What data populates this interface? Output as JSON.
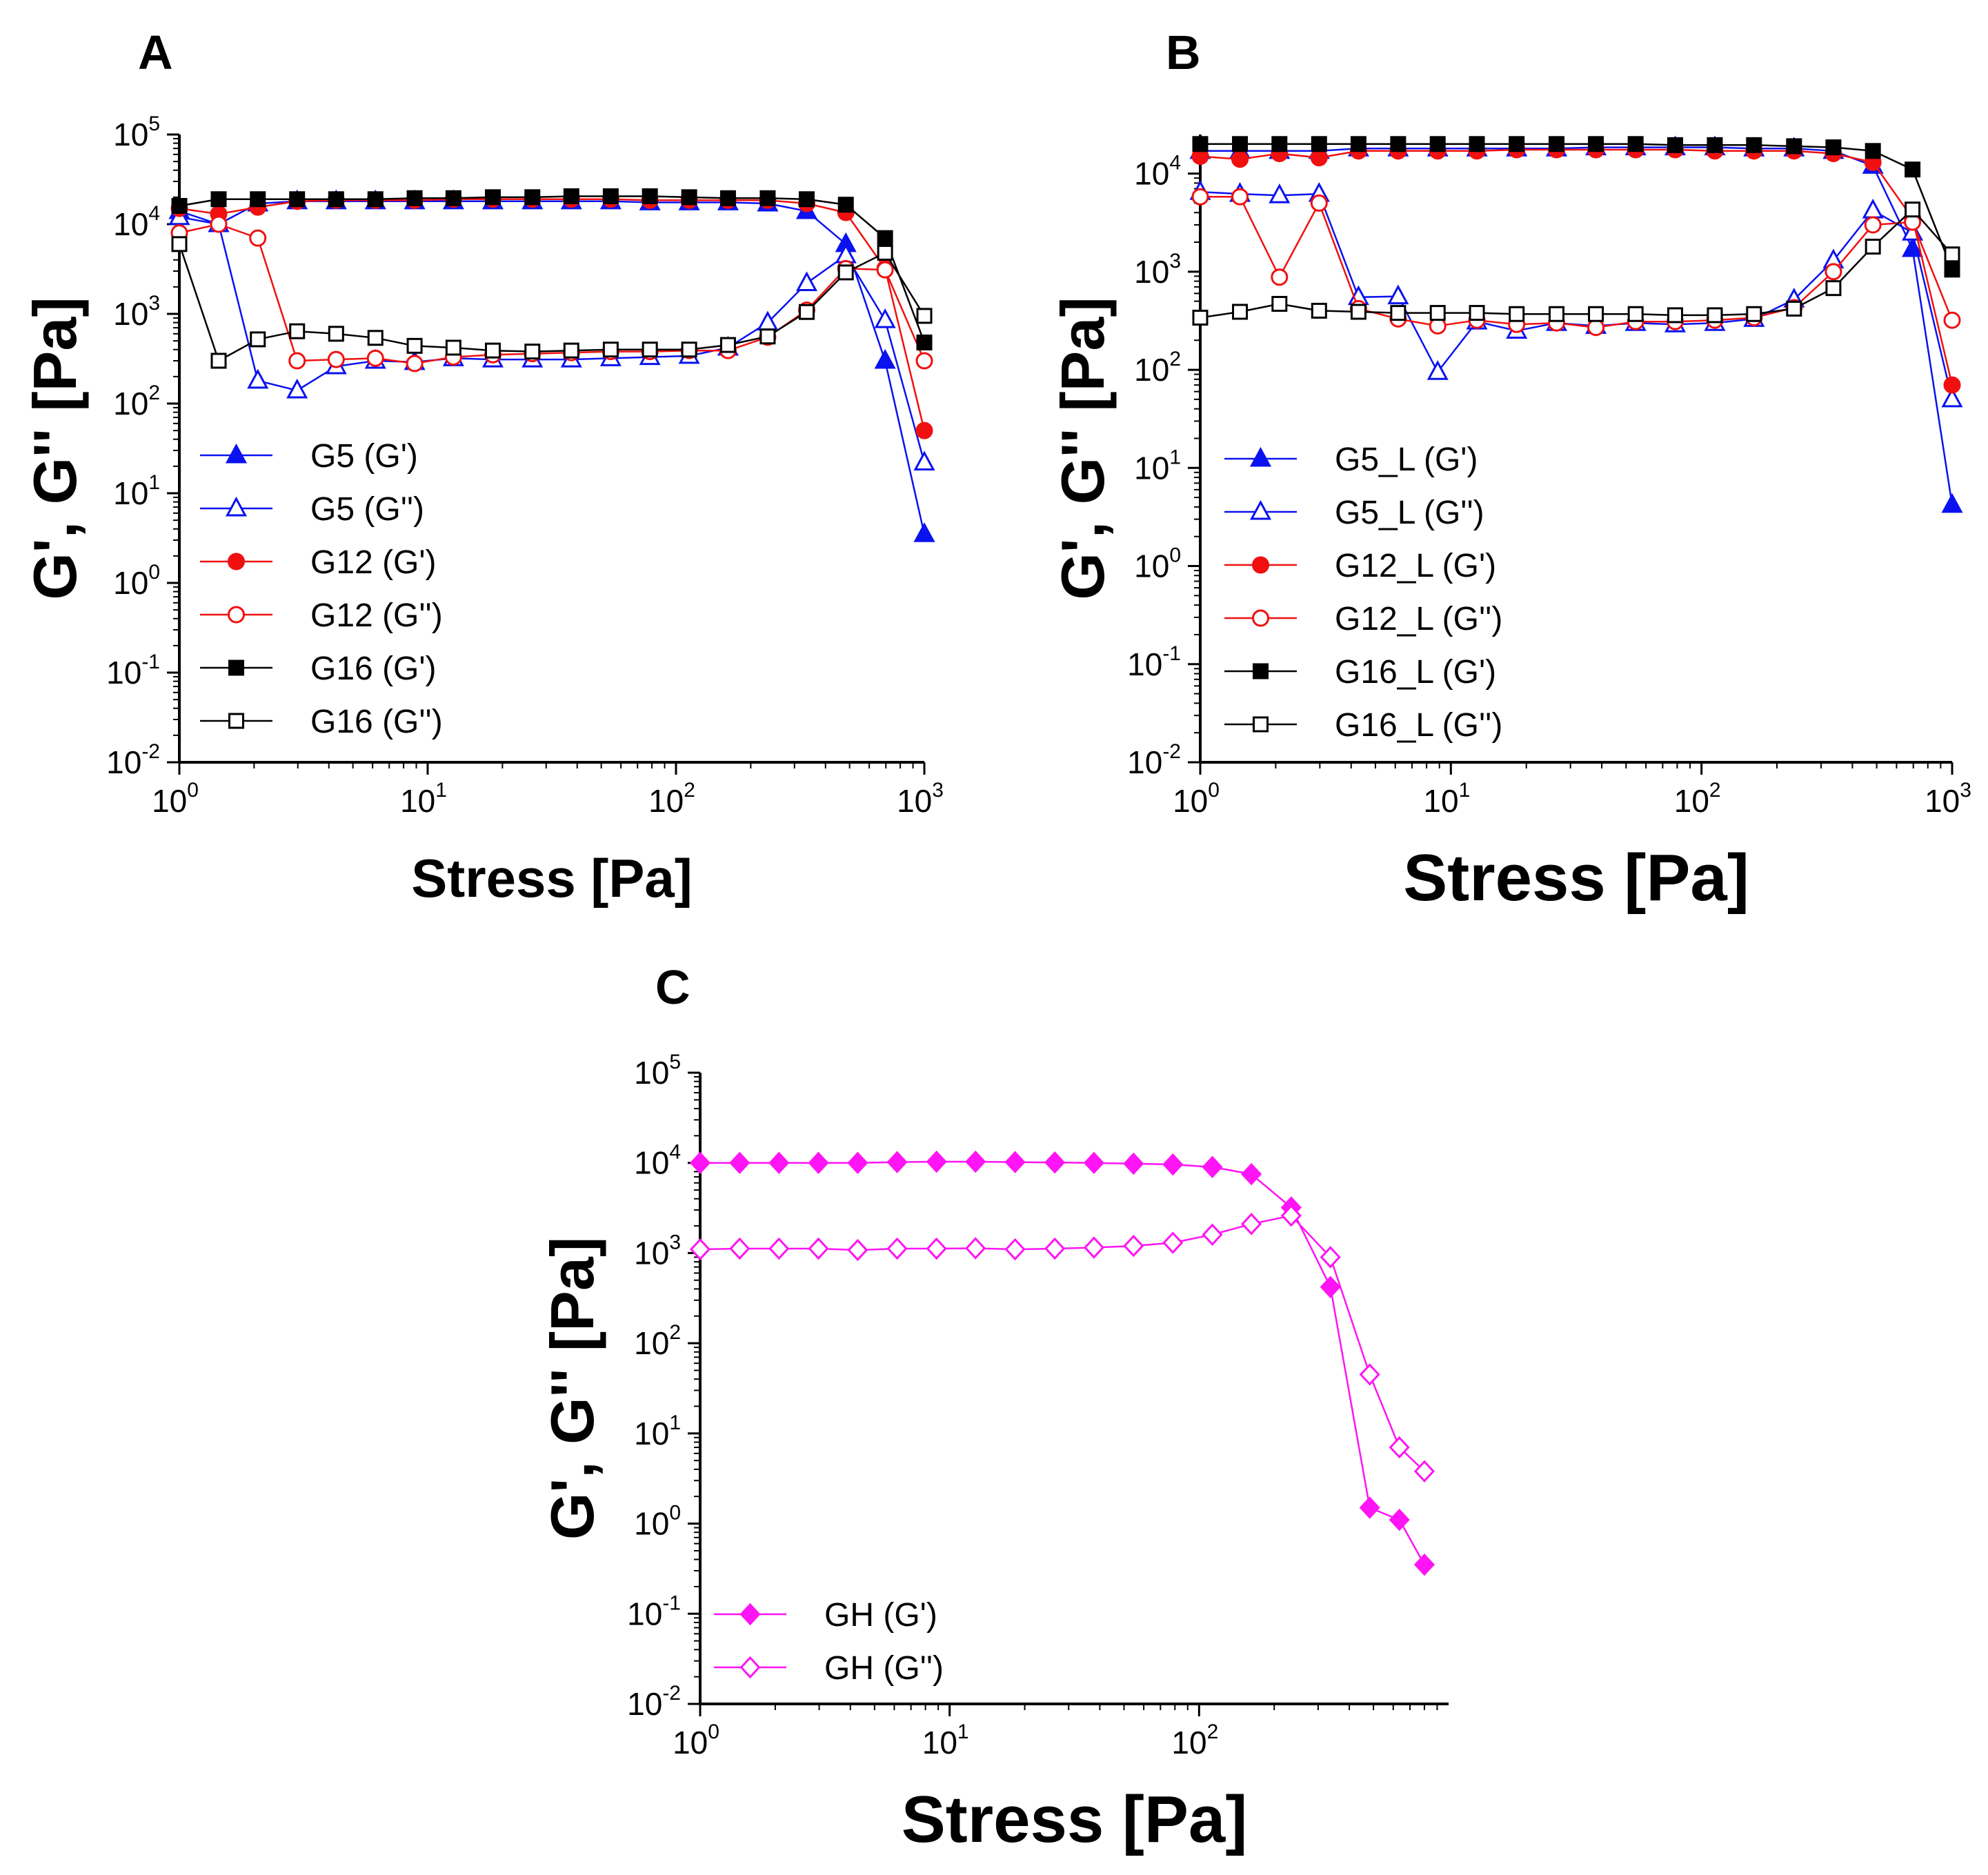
{
  "figure": {
    "description_labels": [
      "A",
      "B",
      "C"
    ]
  },
  "colors": {
    "blue": "#0a12f0",
    "red": "#f01010",
    "black": "#000000",
    "magenta": "#ff14f5"
  },
  "chart_data": [
    {
      "panel": "A",
      "type": "line",
      "x_scale": "log",
      "y_scale": "log",
      "xlim": [
        1,
        1000
      ],
      "ylim": [
        0.01,
        100000
      ],
      "xlabel": "Stress [Pa]",
      "ylabel": "G', G'' [Pa]",
      "x_ticks": [
        {
          "base": "10",
          "exp": "0"
        },
        {
          "base": "10",
          "exp": "1"
        },
        {
          "base": "10",
          "exp": "2"
        },
        {
          "base": "10",
          "exp": "3"
        }
      ],
      "y_ticks": [
        {
          "base": "10",
          "exp": "-2"
        },
        {
          "base": "10",
          "exp": "-1"
        },
        {
          "base": "10",
          "exp": "0"
        },
        {
          "base": "10",
          "exp": "1"
        },
        {
          "base": "10",
          "exp": "2"
        },
        {
          "base": "10",
          "exp": "3"
        },
        {
          "base": "10",
          "exp": "4"
        },
        {
          "base": "10",
          "exp": "5"
        }
      ],
      "legend_position": "bottom-left",
      "series": [
        {
          "name": "G5 (G')",
          "color": "#0a12f0",
          "marker": "triangle",
          "filled": true,
          "x": [
            1,
            1.44,
            2.07,
            2.98,
            4.28,
            6.16,
            8.86,
            12.7,
            18.3,
            26.4,
            37.9,
            54.6,
            78.5,
            113,
            162,
            234,
            336,
            483,
            695,
            1000
          ],
          "y": [
            14000,
            10000,
            17000,
            18000,
            18000,
            18000,
            18000,
            18000,
            18000,
            18000,
            18000,
            18000,
            17500,
            17500,
            17500,
            17000,
            14000,
            6000,
            300,
            3.5
          ]
        },
        {
          "name": "G5 (G'')",
          "color": "#0a12f0",
          "marker": "triangle",
          "filled": false,
          "x": [
            1,
            1.44,
            2.07,
            2.98,
            4.28,
            6.16,
            8.86,
            12.7,
            18.3,
            26.4,
            37.9,
            54.6,
            78.5,
            113,
            162,
            234,
            336,
            483,
            695,
            1000
          ],
          "y": [
            12000,
            10000,
            180,
            140,
            260,
            300,
            290,
            320,
            310,
            310,
            310,
            320,
            330,
            340,
            420,
            800,
            2200,
            4500,
            850,
            22
          ]
        },
        {
          "name": "G12 (G')",
          "color": "#f01010",
          "marker": "circle",
          "filled": true,
          "x": [
            1,
            1.44,
            2.07,
            2.98,
            4.28,
            6.16,
            8.86,
            12.7,
            18.3,
            26.4,
            37.9,
            54.6,
            78.5,
            113,
            162,
            234,
            336,
            483,
            695,
            1000
          ],
          "y": [
            15000,
            13000,
            15500,
            18000,
            18500,
            18500,
            18500,
            19000,
            19000,
            19000,
            19000,
            19000,
            18500,
            18500,
            18500,
            18500,
            17000,
            13500,
            3200,
            50
          ]
        },
        {
          "name": "G12 (G'')",
          "color": "#f01010",
          "marker": "circle",
          "filled": false,
          "x": [
            1,
            1.44,
            2.07,
            2.98,
            4.28,
            6.16,
            8.86,
            12.7,
            18.3,
            26.4,
            37.9,
            54.6,
            78.5,
            113,
            162,
            234,
            336,
            483,
            695,
            1000
          ],
          "y": [
            8000,
            10000,
            7000,
            300,
            310,
            320,
            280,
            330,
            350,
            360,
            370,
            380,
            380,
            390,
            390,
            550,
            1100,
            3200,
            3100,
            300
          ]
        },
        {
          "name": "G16 (G')",
          "color": "#000000",
          "marker": "square",
          "filled": true,
          "x": [
            1,
            1.44,
            2.07,
            2.98,
            4.28,
            6.16,
            8.86,
            12.7,
            18.3,
            26.4,
            37.9,
            54.6,
            78.5,
            113,
            162,
            234,
            336,
            483,
            695,
            1000
          ],
          "y": [
            16000,
            19000,
            19000,
            19000,
            19000,
            19000,
            19500,
            19500,
            20000,
            20000,
            20500,
            20500,
            20500,
            20000,
            19500,
            19500,
            19000,
            16500,
            7000,
            480
          ]
        },
        {
          "name": "G16 (G'')",
          "color": "#000000",
          "marker": "square",
          "filled": false,
          "x": [
            1,
            1.44,
            2.07,
            2.98,
            4.28,
            6.16,
            8.86,
            12.7,
            18.3,
            26.4,
            37.9,
            54.6,
            78.5,
            113,
            162,
            234,
            336,
            483,
            695,
            1000
          ],
          "y": [
            6000,
            300,
            520,
            640,
            600,
            540,
            440,
            420,
            390,
            380,
            390,
            400,
            400,
            400,
            450,
            560,
            1050,
            2900,
            4800,
            950
          ]
        }
      ]
    },
    {
      "panel": "B",
      "type": "line",
      "x_scale": "log",
      "y_scale": "log",
      "xlim": [
        1,
        1000
      ],
      "ylim": [
        0.01,
        25000
      ],
      "xlabel": "Stress [Pa]",
      "ylabel": "G', G'' [Pa]",
      "x_ticks": [
        {
          "base": "10",
          "exp": "0"
        },
        {
          "base": "10",
          "exp": "1"
        },
        {
          "base": "10",
          "exp": "2"
        },
        {
          "base": "10",
          "exp": "3"
        }
      ],
      "y_ticks": [
        {
          "base": "10",
          "exp": "-2"
        },
        {
          "base": "10",
          "exp": "-1"
        },
        {
          "base": "10",
          "exp": "0"
        },
        {
          "base": "10",
          "exp": "1"
        },
        {
          "base": "10",
          "exp": "2"
        },
        {
          "base": "10",
          "exp": "3"
        },
        {
          "base": "10",
          "exp": "4"
        }
      ],
      "legend_position": "bottom-left",
      "series": [
        {
          "name": "G5_L (G')",
          "color": "#0a12f0",
          "marker": "triangle",
          "filled": true,
          "x": [
            1,
            1.44,
            2.07,
            2.98,
            4.28,
            6.16,
            8.86,
            12.7,
            18.3,
            26.4,
            37.9,
            54.6,
            78.5,
            113,
            162,
            234,
            336,
            483,
            695,
            1000
          ],
          "y": [
            17000,
            17000,
            17000,
            17000,
            18000,
            18000,
            18000,
            18000,
            18000,
            18000,
            18500,
            18500,
            18500,
            18500,
            18000,
            18000,
            17000,
            12000,
            1700,
            4.2
          ]
        },
        {
          "name": "G5_L (G'')",
          "color": "#0a12f0",
          "marker": "triangle",
          "filled": false,
          "x": [
            1,
            1.44,
            2.07,
            2.98,
            4.28,
            6.16,
            8.86,
            12.7,
            18.3,
            26.4,
            37.9,
            54.6,
            78.5,
            113,
            162,
            234,
            336,
            483,
            695,
            1000
          ],
          "y": [
            6500,
            6200,
            6000,
            6200,
            550,
            560,
            95,
            310,
            250,
            300,
            280,
            300,
            290,
            300,
            330,
            520,
            1300,
            4200,
            2500,
            50
          ]
        },
        {
          "name": "G12_L (G')",
          "color": "#f01010",
          "marker": "circle",
          "filled": true,
          "x": [
            1,
            1.44,
            2.07,
            2.98,
            4.28,
            6.16,
            8.86,
            12.7,
            18.3,
            26.4,
            37.9,
            54.6,
            78.5,
            113,
            162,
            234,
            336,
            483,
            695,
            1000
          ],
          "y": [
            15000,
            14000,
            16000,
            14500,
            17000,
            17000,
            17000,
            17000,
            17500,
            17500,
            17500,
            17500,
            17500,
            17000,
            17000,
            17000,
            16000,
            13000,
            3500,
            70
          ]
        },
        {
          "name": "G12_L (G'')",
          "color": "#f01010",
          "marker": "circle",
          "filled": false,
          "x": [
            1,
            1.44,
            2.07,
            2.98,
            4.28,
            6.16,
            8.86,
            12.7,
            18.3,
            26.4,
            37.9,
            54.6,
            78.5,
            113,
            162,
            234,
            336,
            483,
            695,
            1000
          ],
          "y": [
            5800,
            5800,
            880,
            5000,
            420,
            330,
            280,
            320,
            290,
            300,
            270,
            310,
            310,
            320,
            340,
            430,
            1000,
            3000,
            3200,
            320
          ]
        },
        {
          "name": "G16_L (G')",
          "color": "#000000",
          "marker": "square",
          "filled": true,
          "x": [
            1,
            1.44,
            2.07,
            2.98,
            4.28,
            6.16,
            8.86,
            12.7,
            18.3,
            26.4,
            37.9,
            54.6,
            78.5,
            113,
            162,
            234,
            336,
            483,
            695,
            1000
          ],
          "y": [
            20000,
            20000,
            20000,
            20000,
            20000,
            20000,
            20000,
            20000,
            20000,
            20000,
            20000,
            20000,
            19500,
            19500,
            19500,
            19000,
            18500,
            17000,
            11000,
            1050
          ]
        },
        {
          "name": "G16_L (G'')",
          "color": "#000000",
          "marker": "square",
          "filled": false,
          "x": [
            1,
            1.44,
            2.07,
            2.98,
            4.28,
            6.16,
            8.86,
            12.7,
            18.3,
            26.4,
            37.9,
            54.6,
            78.5,
            113,
            162,
            234,
            336,
            483,
            695,
            1000
          ],
          "y": [
            340,
            390,
            470,
            400,
            390,
            380,
            380,
            380,
            370,
            370,
            370,
            370,
            360,
            360,
            370,
            420,
            680,
            1800,
            4300,
            1500
          ]
        }
      ]
    },
    {
      "panel": "C",
      "type": "line",
      "x_scale": "log",
      "y_scale": "log",
      "xlim": [
        1,
        1000
      ],
      "ylim": [
        0.01,
        100000
      ],
      "xlabel": "Stress [Pa]",
      "ylabel": "G', G'' [Pa]",
      "x_ticks": [
        {
          "base": "10",
          "exp": "0"
        },
        {
          "base": "10",
          "exp": "1"
        },
        {
          "base": "10",
          "exp": "2"
        }
      ],
      "y_ticks": [
        {
          "base": "10",
          "exp": "-2"
        },
        {
          "base": "10",
          "exp": "-1"
        },
        {
          "base": "10",
          "exp": "0"
        },
        {
          "base": "10",
          "exp": "1"
        },
        {
          "base": "10",
          "exp": "2"
        },
        {
          "base": "10",
          "exp": "3"
        },
        {
          "base": "10",
          "exp": "4"
        },
        {
          "base": "10",
          "exp": "5"
        }
      ],
      "legend_position": "bottom-left",
      "series": [
        {
          "name": "GH (G')",
          "color": "#ff14f5",
          "marker": "diamond",
          "filled": true,
          "x": [
            1,
            1.44,
            2.07,
            2.98,
            4.28,
            6.16,
            8.86,
            12.7,
            18.3,
            26.4,
            37.9,
            54.6,
            78.5,
            113,
            162,
            234,
            336,
            483,
            635,
            800
          ],
          "y": [
            10000,
            10000,
            10000,
            10000,
            10000,
            10200,
            10300,
            10300,
            10200,
            10100,
            10000,
            9800,
            9600,
            9000,
            7500,
            3200,
            420,
            1.5,
            1.1,
            0.35
          ]
        },
        {
          "name": "GH (G'')",
          "color": "#ff14f5",
          "marker": "diamond",
          "filled": false,
          "x": [
            1,
            1.44,
            2.07,
            2.98,
            4.28,
            6.16,
            8.86,
            12.7,
            18.3,
            26.4,
            37.9,
            54.6,
            78.5,
            113,
            162,
            234,
            336,
            483,
            635,
            800
          ],
          "y": [
            1100,
            1120,
            1120,
            1120,
            1080,
            1120,
            1120,
            1130,
            1100,
            1120,
            1150,
            1200,
            1300,
            1600,
            2100,
            2600,
            900,
            45,
            7,
            3.8
          ]
        }
      ]
    }
  ]
}
